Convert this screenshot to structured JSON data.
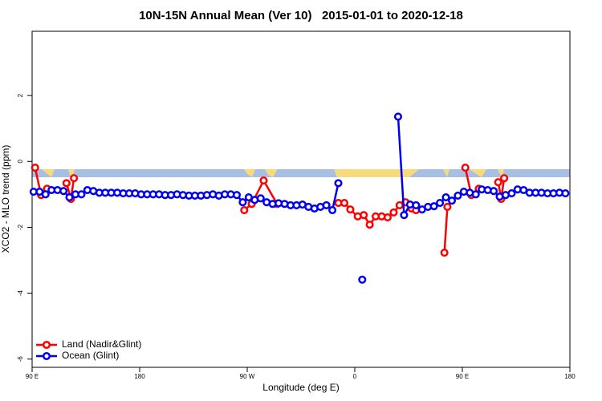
{
  "chart_data": {
    "type": "line",
    "title": "10N-15N Annual Mean (Ver 10)   2015-01-01 to 2020-12-18",
    "x_label": "Longitude (deg E)",
    "y_label": "XCO2 - MLO trend (ppm)",
    "xlim": [
      90,
      450
    ],
    "ylim": [
      -6.25,
      3.95
    ],
    "xticks": [
      {
        "value": 90,
        "label": "90 E"
      },
      {
        "value": 180,
        "label": "180"
      },
      {
        "value": 270,
        "label": "90 W"
      },
      {
        "value": 360,
        "label": "0"
      },
      {
        "value": 450,
        "label": "90 E"
      },
      {
        "value": 540,
        "label": "180"
      }
    ],
    "yticks": [
      2,
      0,
      -2,
      -4,
      -6
    ],
    "legend": "bottom-left",
    "series": [
      {
        "name": "Land (Nadir&Glint)",
        "color": "#ff0000",
        "x": [
          92,
          96,
          100,
          null,
          113,
          116,
          118,
          null,
          232,
          237,
          245,
          254,
          null,
          295,
          299,
          303,
          308,
          312,
          316,
          320,
          324,
          328,
          332,
          336,
          340,
          344,
          347,
          null,
          366,
          368,
          null,
          380,
          384,
          389,
          null,
          402,
          404,
          406
        ],
        "values": [
          -0.19,
          -1.02,
          -0.83,
          null,
          -0.66,
          -1.14,
          -0.51,
          null,
          -1.48,
          -1.29,
          -0.58,
          -1.29,
          null,
          -1.26,
          -1.26,
          -1.46,
          -1.67,
          -1.63,
          -1.92,
          -1.67,
          -1.67,
          -1.7,
          -1.55,
          -1.33,
          -1.24,
          -1.43,
          -1.48,
          null,
          -2.77,
          -1.38,
          null,
          -0.19,
          -1.02,
          -0.83,
          null,
          -0.63,
          -1.14,
          -0.51
        ]
      },
      {
        "name": "Ocean (Glint)",
        "color": "#0000ee",
        "x": [
          91,
          95,
          99,
          103,
          107,
          111,
          115,
          119,
          123,
          127,
          131,
          135,
          139,
          143,
          147,
          151,
          155,
          159,
          163,
          167,
          171,
          175,
          179,
          183,
          187,
          191,
          195,
          199,
          203,
          207,
          211,
          215,
          219,
          223,
          227,
          231,
          235,
          239,
          243,
          247,
          251,
          255,
          259,
          263,
          267,
          271,
          275,
          279,
          283,
          287,
          291,
          295,
          null,
          null,
          null,
          311,
          null,
          null,
          null,
          null,
          null,
          335,
          339,
          343,
          347,
          351,
          355,
          359,
          363,
          367,
          371,
          375,
          379,
          383,
          387,
          391,
          395,
          399,
          403,
          407,
          411,
          415,
          419,
          423,
          427,
          431,
          435,
          439,
          443,
          447
        ],
        "values": [
          -0.92,
          -0.92,
          -1.0,
          -0.87,
          -0.87,
          -0.9,
          -1.09,
          -1.0,
          -1.0,
          -0.87,
          -0.9,
          -0.95,
          -0.95,
          -0.95,
          -0.95,
          -0.97,
          -0.97,
          -0.97,
          -1.0,
          -1.0,
          -1.0,
          -1.0,
          -1.02,
          -1.02,
          -1.0,
          -1.02,
          -1.04,
          -1.04,
          -1.04,
          -1.02,
          -1.0,
          -1.04,
          -1.0,
          -1.0,
          -1.02,
          -1.24,
          -1.09,
          -1.17,
          -1.12,
          -1.24,
          -1.29,
          -1.27,
          -1.29,
          -1.33,
          -1.33,
          -1.31,
          -1.38,
          -1.43,
          -1.38,
          -1.33,
          -1.48,
          -0.66,
          null,
          null,
          null,
          -3.59,
          null,
          null,
          null,
          null,
          null,
          1.36,
          -1.63,
          -1.31,
          -1.33,
          -1.46,
          -1.38,
          -1.36,
          -1.26,
          -1.09,
          -1.19,
          -1.04,
          -0.92,
          -0.95,
          -1.0,
          -0.85,
          -0.87,
          -0.9,
          -1.07,
          -1.02,
          -0.97,
          -0.85,
          -0.87,
          -0.95,
          -0.95,
          -0.95,
          -0.97,
          -0.97,
          -0.95,
          -0.97
        ]
      }
    ]
  }
}
